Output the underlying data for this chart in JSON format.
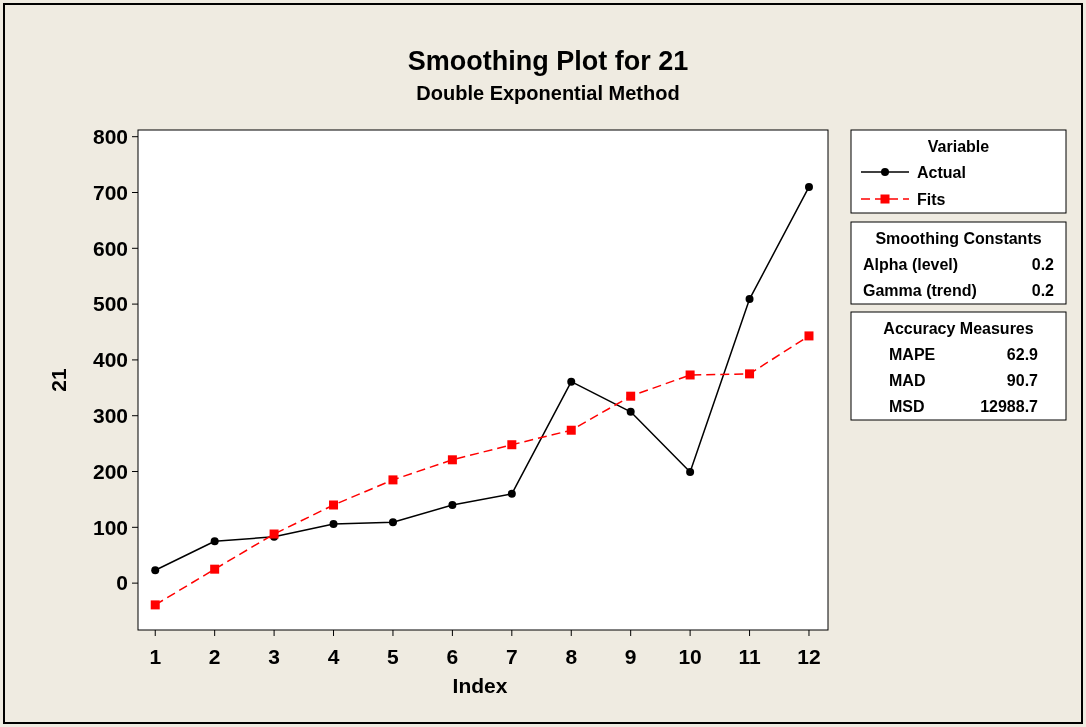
{
  "chart_data": {
    "type": "line",
    "title": "Smoothing Plot for 21",
    "subtitle": "Double Exponential Method",
    "xlabel": "Index",
    "ylabel": "21",
    "legend_title": "Variable",
    "legend": "right",
    "grid": false,
    "x": [
      1,
      2,
      3,
      4,
      5,
      6,
      7,
      8,
      9,
      10,
      11,
      12
    ],
    "series": [
      {
        "name": "Actual",
        "color": "#000000",
        "marker": "circle",
        "line_style": "solid",
        "values": [
          23,
          75,
          83,
          106,
          109,
          140,
          160,
          361,
          307,
          199,
          509,
          710
        ]
      },
      {
        "name": "Fits",
        "color": "#ff0000",
        "marker": "square",
        "line_style": "dashed",
        "values": [
          -39,
          25,
          88,
          140,
          185,
          221,
          248,
          274,
          335,
          373,
          375,
          443
        ]
      }
    ],
    "xlim": [
      0.71,
      12.32
    ],
    "xticks": [
      1,
      2,
      3,
      4,
      5,
      6,
      7,
      8,
      9,
      10,
      11,
      12
    ],
    "ylim": [
      -84,
      812
    ],
    "yticks": [
      0,
      100,
      200,
      300,
      400,
      500,
      600,
      700,
      800
    ],
    "annotations": [
      "Smoothing Constants",
      "Alpha (level)",
      "0.2",
      "Gamma (trend)",
      "0.2",
      "Accuracy Measures",
      "MAPE",
      "62.9",
      "MAD",
      "90.7",
      "MSD",
      "12988.7"
    ]
  }
}
